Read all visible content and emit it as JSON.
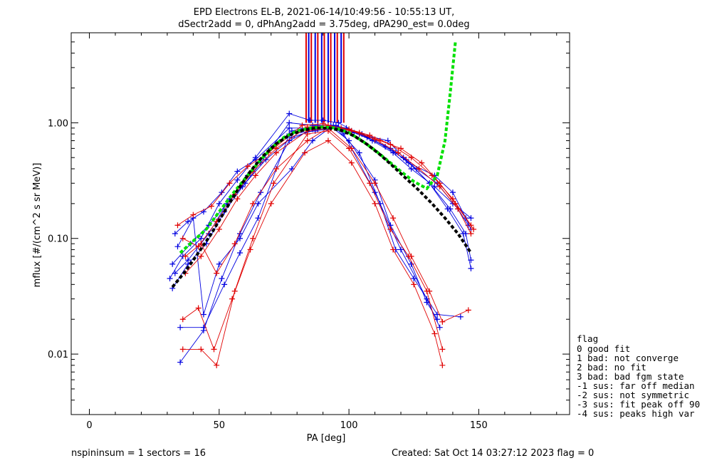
{
  "chart_data": {
    "type": "line",
    "title": "EPD Electrons EL-B, 2021-06-14/10:49:56 - 10:55:13 UT,",
    "subtitle": "dSectr2add = 0, dPhAng2add = 3.75deg, dPA290_est=   0.0deg",
    "xlabel": "PA [deg]",
    "ylabel": "mflux [#/(cm^2 s sr MeV)]",
    "xlim": [
      -7,
      185
    ],
    "ylim": [
      0.003,
      6
    ],
    "yscale": "log",
    "grid": false,
    "x_ticks": [
      0,
      50,
      100,
      150
    ],
    "x_tick_labels": [
      "0",
      "50",
      "100",
      "150"
    ],
    "y_ticks": [
      0.01,
      0.1,
      1.0
    ],
    "y_tick_labels": [
      "0.01",
      "0.10",
      "1.00"
    ],
    "colors": {
      "red": "#e00000",
      "blue": "#0000e0",
      "green": "#00e000",
      "black": "#000000"
    },
    "series": [
      {
        "color": "#0000e0",
        "points": [
          [
            31,
            0.045
          ],
          [
            36,
            0.07
          ],
          [
            43,
            0.1
          ],
          [
            50,
            0.2
          ],
          [
            57,
            0.32
          ],
          [
            64,
            0.5
          ],
          [
            77,
            1.2
          ],
          [
            85,
            1.05
          ],
          [
            90,
            1.05
          ],
          [
            96,
            1.0
          ],
          [
            104,
            0.8
          ],
          [
            115,
            0.7
          ],
          [
            121,
            0.5
          ],
          [
            131,
            0.3
          ],
          [
            138,
            0.18
          ],
          [
            144,
            0.11
          ],
          [
            147,
            0.055
          ]
        ]
      },
      {
        "color": "#0000e0",
        "points": [
          [
            32,
            0.037
          ],
          [
            38,
            0.06
          ],
          [
            45,
            0.09
          ],
          [
            52,
            0.17
          ],
          [
            59,
            0.28
          ],
          [
            66,
            0.45
          ],
          [
            77,
            1.0
          ],
          [
            86,
            0.95
          ],
          [
            93,
            0.95
          ],
          [
            99,
            0.9
          ],
          [
            107,
            0.75
          ],
          [
            116,
            0.6
          ],
          [
            123,
            0.45
          ],
          [
            133,
            0.35
          ],
          [
            140,
            0.25
          ],
          [
            145,
            0.15
          ],
          [
            147,
            0.12
          ]
        ]
      },
      {
        "color": "#0000e0",
        "points": [
          [
            33,
            0.05
          ],
          [
            38,
            0.065
          ],
          [
            46,
            0.11
          ],
          [
            54,
            0.22
          ],
          [
            61,
            0.35
          ],
          [
            70,
            0.6
          ],
          [
            78,
            0.85
          ],
          [
            88,
            0.95
          ],
          [
            95,
            0.95
          ],
          [
            102,
            0.82
          ],
          [
            110,
            0.7
          ],
          [
            118,
            0.55
          ],
          [
            126,
            0.4
          ],
          [
            134,
            0.3
          ],
          [
            142,
            0.18
          ],
          [
            146,
            0.13
          ]
        ]
      },
      {
        "color": "#0000e0",
        "points": [
          [
            34,
            0.085
          ],
          [
            40,
            0.15
          ],
          [
            44,
            0.022
          ],
          [
            50,
            0.06
          ],
          [
            58,
            0.1
          ],
          [
            65,
            0.2
          ],
          [
            78,
            0.4
          ],
          [
            86,
            0.7
          ],
          [
            94,
            0.95
          ],
          [
            98,
            0.8
          ],
          [
            110,
            0.25
          ],
          [
            120,
            0.08
          ],
          [
            130,
            0.03
          ],
          [
            135,
            0.017
          ]
        ]
      },
      {
        "color": "#0000e0",
        "points": [
          [
            33,
            0.11
          ],
          [
            38,
            0.14
          ],
          [
            44,
            0.17
          ],
          [
            51,
            0.25
          ],
          [
            57,
            0.38
          ],
          [
            64,
            0.48
          ],
          [
            77,
            0.9
          ],
          [
            86,
            0.9
          ],
          [
            93,
            0.92
          ],
          [
            101,
            0.85
          ],
          [
            109,
            0.7
          ],
          [
            117,
            0.55
          ],
          [
            124,
            0.4
          ],
          [
            133,
            0.28
          ],
          [
            140,
            0.2
          ],
          [
            147,
            0.15
          ]
        ]
      },
      {
        "color": "#0000e0",
        "points": [
          [
            35,
            0.017
          ],
          [
            44,
            0.017
          ],
          [
            52,
            0.04
          ],
          [
            58,
            0.075
          ],
          [
            65,
            0.15
          ],
          [
            77,
            0.8
          ],
          [
            87,
            0.85
          ],
          [
            95,
            0.9
          ],
          [
            104,
            0.55
          ],
          [
            112,
            0.2
          ],
          [
            118,
            0.08
          ],
          [
            125,
            0.045
          ],
          [
            134,
            0.022
          ],
          [
            143,
            0.021
          ]
        ]
      },
      {
        "color": "#0000e0",
        "points": [
          [
            35,
            0.0085
          ],
          [
            44,
            0.016
          ],
          [
            51,
            0.045
          ],
          [
            58,
            0.11
          ],
          [
            66,
            0.25
          ],
          [
            77,
            0.7
          ],
          [
            86,
            0.88
          ],
          [
            93,
            0.93
          ],
          [
            100,
            0.7
          ],
          [
            110,
            0.32
          ],
          [
            116,
            0.13
          ],
          [
            124,
            0.06
          ],
          [
            130,
            0.028
          ],
          [
            134,
            0.02
          ]
        ]
      },
      {
        "color": "#0000e0",
        "points": [
          [
            32,
            0.06
          ],
          [
            39,
            0.09
          ],
          [
            46,
            0.13
          ],
          [
            53,
            0.2
          ],
          [
            60,
            0.3
          ],
          [
            68,
            0.48
          ],
          [
            78,
            0.75
          ],
          [
            88,
            0.88
          ],
          [
            96,
            0.9
          ],
          [
            105,
            0.8
          ],
          [
            114,
            0.62
          ],
          [
            122,
            0.48
          ],
          [
            131,
            0.3
          ],
          [
            139,
            0.18
          ],
          [
            145,
            0.11
          ],
          [
            147,
            0.065
          ]
        ]
      },
      {
        "color": "#e00000",
        "points": [
          [
            34,
            0.13
          ],
          [
            40,
            0.16
          ],
          [
            47,
            0.19
          ],
          [
            54,
            0.3
          ],
          [
            61,
            0.42
          ],
          [
            69,
            0.55
          ],
          [
            82,
            0.95
          ],
          [
            90,
            0.98
          ],
          [
            97,
            0.9
          ],
          [
            104,
            0.82
          ],
          [
            112,
            0.7
          ],
          [
            120,
            0.6
          ],
          [
            128,
            0.45
          ],
          [
            135,
            0.3
          ],
          [
            141,
            0.2
          ],
          [
            148,
            0.12
          ]
        ]
      },
      {
        "color": "#e00000",
        "points": [
          [
            36,
            0.02
          ],
          [
            42,
            0.025
          ],
          [
            48,
            0.011
          ],
          [
            55,
            0.03
          ],
          [
            62,
            0.08
          ],
          [
            70,
            0.2
          ],
          [
            83,
            0.55
          ],
          [
            92,
            0.7
          ],
          [
            101,
            0.45
          ],
          [
            110,
            0.2
          ],
          [
            117,
            0.08
          ],
          [
            125,
            0.04
          ],
          [
            133,
            0.015
          ],
          [
            136,
            0.008
          ]
        ]
      },
      {
        "color": "#e00000",
        "points": [
          [
            36,
            0.011
          ],
          [
            43,
            0.011
          ],
          [
            49,
            0.008
          ],
          [
            56,
            0.035
          ],
          [
            63,
            0.1
          ],
          [
            71,
            0.3
          ],
          [
            84,
            0.8
          ],
          [
            92,
            0.85
          ],
          [
            100,
            0.6
          ],
          [
            108,
            0.3
          ],
          [
            116,
            0.12
          ],
          [
            123,
            0.07
          ],
          [
            130,
            0.035
          ],
          [
            136,
            0.011
          ]
        ]
      },
      {
        "color": "#e00000",
        "points": [
          [
            37,
            0.05
          ],
          [
            43,
            0.07
          ],
          [
            50,
            0.12
          ],
          [
            57,
            0.22
          ],
          [
            64,
            0.35
          ],
          [
            72,
            0.55
          ],
          [
            84,
            0.85
          ],
          [
            93,
            0.9
          ],
          [
            101,
            0.85
          ],
          [
            110,
            0.72
          ],
          [
            119,
            0.55
          ],
          [
            127,
            0.4
          ],
          [
            135,
            0.28
          ],
          [
            142,
            0.18
          ],
          [
            147,
            0.11
          ]
        ]
      },
      {
        "color": "#e00000",
        "points": [
          [
            36,
            0.1
          ],
          [
            42,
            0.085
          ],
          [
            49,
            0.14
          ],
          [
            56,
            0.24
          ],
          [
            63,
            0.38
          ],
          [
            72,
            0.6
          ],
          [
            84,
            0.92
          ],
          [
            92,
            0.95
          ],
          [
            100,
            0.88
          ],
          [
            108,
            0.78
          ],
          [
            116,
            0.65
          ],
          [
            124,
            0.5
          ],
          [
            132,
            0.35
          ],
          [
            140,
            0.22
          ],
          [
            147,
            0.13
          ]
        ]
      },
      {
        "color": "#e00000",
        "points": [
          [
            37,
            0.07
          ],
          [
            43,
            0.09
          ],
          [
            49,
            0.05
          ],
          [
            56,
            0.09
          ],
          [
            63,
            0.2
          ],
          [
            72,
            0.4
          ],
          [
            84,
            0.7
          ],
          [
            92,
            0.9
          ],
          [
            101,
            0.6
          ],
          [
            110,
            0.3
          ],
          [
            117,
            0.15
          ],
          [
            124,
            0.07
          ],
          [
            131,
            0.035
          ],
          [
            136,
            0.019
          ],
          [
            146,
            0.024
          ]
        ]
      },
      {
        "color": "#00e000",
        "dashed": true,
        "points": [
          [
            35,
            0.075
          ],
          [
            40,
            0.095
          ],
          [
            45,
            0.12
          ],
          [
            50,
            0.17
          ],
          [
            55,
            0.24
          ],
          [
            60,
            0.33
          ],
          [
            65,
            0.45
          ],
          [
            70,
            0.6
          ],
          [
            75,
            0.75
          ],
          [
            80,
            0.85
          ],
          [
            85,
            0.9
          ],
          [
            90,
            0.92
          ],
          [
            95,
            0.9
          ],
          [
            100,
            0.82
          ],
          [
            105,
            0.7
          ],
          [
            110,
            0.58
          ],
          [
            115,
            0.47
          ],
          [
            120,
            0.38
          ],
          [
            125,
            0.31
          ],
          [
            130,
            0.27
          ],
          [
            134,
            0.35
          ],
          [
            137,
            0.7
          ],
          [
            139,
            1.8
          ],
          [
            141,
            5.0
          ]
        ]
      },
      {
        "color": "#000000",
        "dashed": true,
        "points": [
          [
            32,
            0.038
          ],
          [
            37,
            0.052
          ],
          [
            42,
            0.075
          ],
          [
            47,
            0.11
          ],
          [
            52,
            0.17
          ],
          [
            57,
            0.26
          ],
          [
            62,
            0.38
          ],
          [
            67,
            0.52
          ],
          [
            72,
            0.66
          ],
          [
            77,
            0.78
          ],
          [
            82,
            0.86
          ],
          [
            87,
            0.9
          ],
          [
            92,
            0.9
          ],
          [
            97,
            0.86
          ],
          [
            102,
            0.77
          ],
          [
            107,
            0.65
          ],
          [
            112,
            0.53
          ],
          [
            117,
            0.42
          ],
          [
            122,
            0.33
          ],
          [
            127,
            0.26
          ],
          [
            132,
            0.2
          ],
          [
            137,
            0.15
          ],
          [
            142,
            0.11
          ],
          [
            147,
            0.075
          ]
        ]
      }
    ],
    "vertical_bars": {
      "ymin": 1.0,
      "ymax": 6,
      "x_red": [
        83.5,
        85.5,
        88,
        90.5,
        93,
        95.5,
        98
      ],
      "x_blue": [
        84.5,
        87,
        89.5,
        92,
        94.5,
        97
      ]
    }
  },
  "legend": {
    "title": "flag",
    "items": [
      " 0 good fit",
      " 1 bad: not converge",
      " 2 bad: no fit",
      " 3 bad: bad fgm state",
      "-1 sus: far off median",
      "-2 sus: not symmetric",
      "-3 sus: fit peak off 90",
      "-4 sus: peaks high var"
    ]
  },
  "footer": {
    "left": "nspininsum =  1  sectors = 16",
    "right": "Created: Sat Oct 14 03:27:12 2023   flag = 0"
  }
}
